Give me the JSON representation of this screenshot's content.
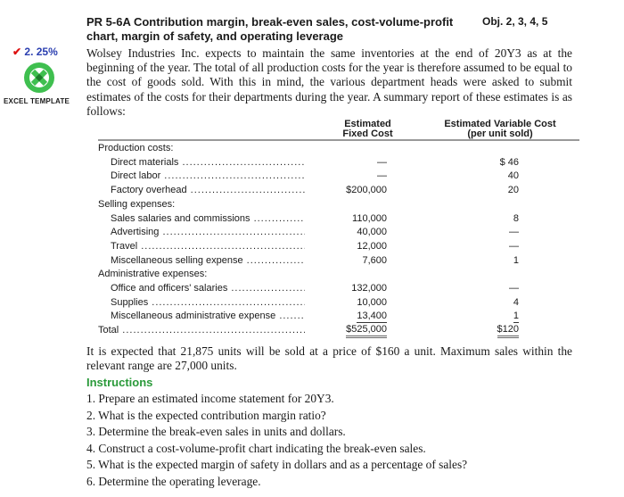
{
  "header": {
    "title": "PR 5-6A  Contribution margin, break-even sales, cost-volume-profit chart, margin of safety, and operating leverage",
    "objectives": "Obj. 2, 3, 4, 5"
  },
  "margin": {
    "check_answer": "2. 25%",
    "excel_label": "EXCEL TEMPLATE",
    "excel_color": "#3fbf4f"
  },
  "intro": "Wolsey Industries Inc. expects to maintain the same inventories at the end of 20Y3 as at the beginning of the year. The total of all production costs for the year is therefore assumed to be equal to the cost of goods sold. With this in mind, the various department heads were asked to submit estimates of the costs for their departments during the year. A summary report of these estimates is as follows:",
  "table": {
    "headers": {
      "fixed": "Estimated Fixed Cost",
      "variable": "Estimated Variable Cost (per unit sold)"
    },
    "rows": [
      {
        "label": "Production costs:",
        "fixed": "",
        "variable": "",
        "type": "section"
      },
      {
        "label": "Direct materials",
        "fixed": "—",
        "variable": "$ 46",
        "type": "item"
      },
      {
        "label": "Direct labor",
        "fixed": "—",
        "variable": "40",
        "type": "item"
      },
      {
        "label": "Factory overhead",
        "fixed": "$200,000",
        "variable": "20",
        "type": "item"
      },
      {
        "label": "Selling expenses:",
        "fixed": "",
        "variable": "",
        "type": "section"
      },
      {
        "label": "Sales salaries and commissions",
        "fixed": "110,000",
        "variable": "8",
        "type": "item"
      },
      {
        "label": "Advertising",
        "fixed": "40,000",
        "variable": "—",
        "type": "item"
      },
      {
        "label": "Travel",
        "fixed": "12,000",
        "variable": "—",
        "type": "item"
      },
      {
        "label": "Miscellaneous selling expense",
        "fixed": "7,600",
        "variable": "1",
        "type": "item"
      },
      {
        "label": "Administrative expenses:",
        "fixed": "",
        "variable": "",
        "type": "section"
      },
      {
        "label": "Office and officers' salaries",
        "fixed": "132,000",
        "variable": "—",
        "type": "item"
      },
      {
        "label": "Supplies",
        "fixed": "10,000",
        "variable": "4",
        "type": "item"
      },
      {
        "label": "Miscellaneous administrative expense",
        "fixed": "13,400",
        "variable": "1",
        "type": "item"
      },
      {
        "label": "Total",
        "fixed": "$525,000",
        "variable": "$120",
        "type": "total"
      }
    ]
  },
  "expectation": "It is expected that 21,875 units will be sold at a price of $160 a unit. Maximum sales within the relevant range are 27,000 units.",
  "instructions": {
    "heading": "Instructions",
    "items": [
      "1.  Prepare an estimated income statement for 20Y3.",
      "2.  What is the expected contribution margin ratio?",
      "3.  Determine the break-even sales in units and dollars.",
      "4.  Construct a cost-volume-profit chart indicating the break-even sales.",
      "5.  What is the expected margin of safety in dollars and as a percentage of sales?",
      "6.  Determine the operating leverage."
    ]
  }
}
